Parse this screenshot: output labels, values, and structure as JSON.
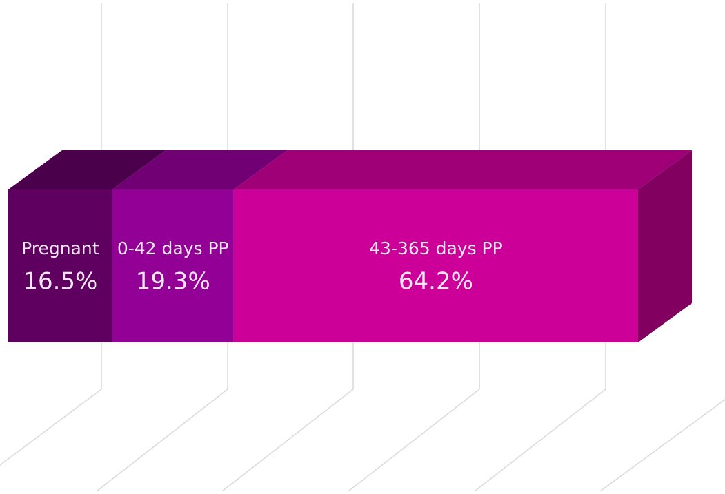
{
  "chart_data": {
    "type": "stacked-bar-3d",
    "series": [
      {
        "name": "Pregnant",
        "color": "#5f0060",
        "values": [
          16.5
        ],
        "value_labels": [
          "16.5%"
        ]
      },
      {
        "name": "0-42 days PP",
        "color": "#920096",
        "values": [
          19.3
        ],
        "value_labels": [
          "19.3%"
        ]
      },
      {
        "name": "43-365 days PP",
        "color": "#cc0099",
        "values": [
          64.2
        ],
        "value_labels": [
          "64.2%"
        ]
      }
    ],
    "xlim": [
      0,
      100
    ]
  }
}
